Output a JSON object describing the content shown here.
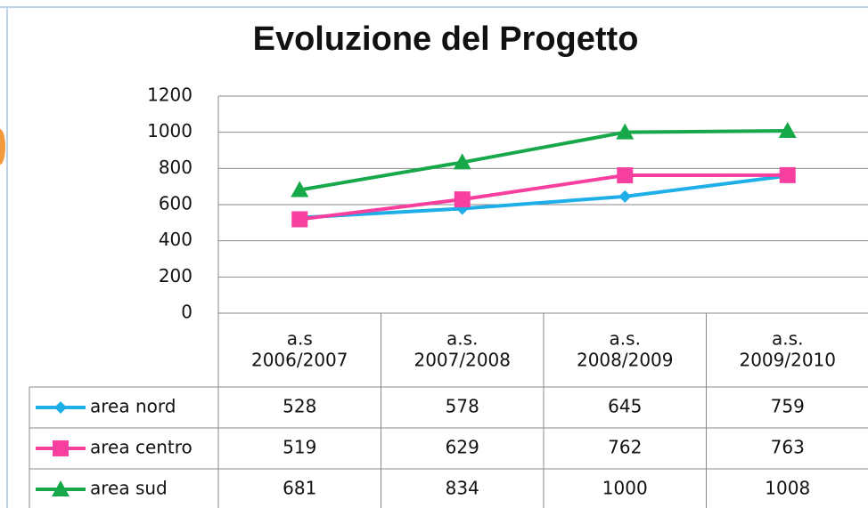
{
  "chart_data": {
    "type": "line",
    "title": "Evoluzione del Progetto",
    "categories": [
      "a.s\n2006/2007",
      "a.s.\n2007/2008",
      "a.s.\n2008/2009",
      "a.s.\n2009/2010"
    ],
    "series": [
      {
        "name": "area nord",
        "color": "#1eaee8",
        "marker": "diamond",
        "values": [
          528,
          578,
          645,
          759
        ]
      },
      {
        "name": "area centro",
        "color": "#f63f9f",
        "marker": "square",
        "values": [
          519,
          629,
          762,
          763
        ]
      },
      {
        "name": "area sud",
        "color": "#17a84a",
        "marker": "triangle",
        "values": [
          681,
          834,
          1000,
          1008
        ]
      }
    ],
    "ylim": [
      0,
      1200
    ],
    "yticks": [
      0,
      200,
      400,
      600,
      800,
      1000,
      1200
    ],
    "grid": true,
    "data_table": true
  }
}
